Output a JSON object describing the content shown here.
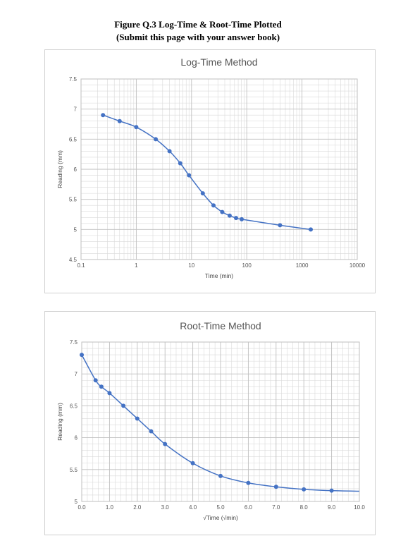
{
  "page": {
    "heading_line1": "Figure Q.3 Log-Time & Root-Time Plotted",
    "heading_line2": "(Submit this page with your answer book)"
  },
  "colors": {
    "series": "#4472c4",
    "grid": "#d9d9d9",
    "axis": "#bfbfbf"
  },
  "chart_data": [
    {
      "type": "line",
      "title": "Log-Time Method",
      "xlabel": "Time (min)",
      "ylabel": "Reading (mm)",
      "xscale": "log",
      "xlim": [
        0.1,
        10000
      ],
      "ylim": [
        4.5,
        7.5
      ],
      "grid": true,
      "legend": "none",
      "xticks": [
        "0.1",
        "1",
        "10",
        "100",
        "1000",
        "10000"
      ],
      "yticks": [
        "4.5",
        "5",
        "5.5",
        "6",
        "6.5",
        "7",
        "7.5"
      ],
      "x": [
        0.25,
        0.5,
        1,
        2.25,
        4,
        6.25,
        9,
        16,
        25,
        36,
        49,
        64,
        81,
        400,
        1440
      ],
      "y": [
        6.9,
        6.8,
        6.7,
        6.5,
        6.3,
        6.1,
        5.9,
        5.6,
        5.4,
        5.29,
        5.23,
        5.19,
        5.17,
        5.07,
        5.0
      ]
    },
    {
      "type": "line",
      "title": "Root-Time Method",
      "xlabel": "√Time (√min)",
      "ylabel": "Reading (mm)",
      "xscale": "linear",
      "xlim": [
        0,
        10
      ],
      "ylim": [
        5,
        7.5
      ],
      "grid": true,
      "legend": "none",
      "xticks": [
        "0.0",
        "1.0",
        "2.0",
        "3.0",
        "4.0",
        "5.0",
        "6.0",
        "7.0",
        "8.0",
        "9.0",
        "10.0"
      ],
      "yticks": [
        "5",
        "5.5",
        "6",
        "6.5",
        "7",
        "7.5"
      ],
      "x": [
        0,
        0.5,
        0.707,
        1,
        1.5,
        2,
        2.5,
        3,
        4,
        5,
        6,
        7,
        8,
        9,
        10
      ],
      "y": [
        7.3,
        6.9,
        6.8,
        6.7,
        6.5,
        6.3,
        6.1,
        5.9,
        5.6,
        5.4,
        5.29,
        5.23,
        5.19,
        5.17,
        5.16
      ],
      "marker_count": 14
    }
  ]
}
